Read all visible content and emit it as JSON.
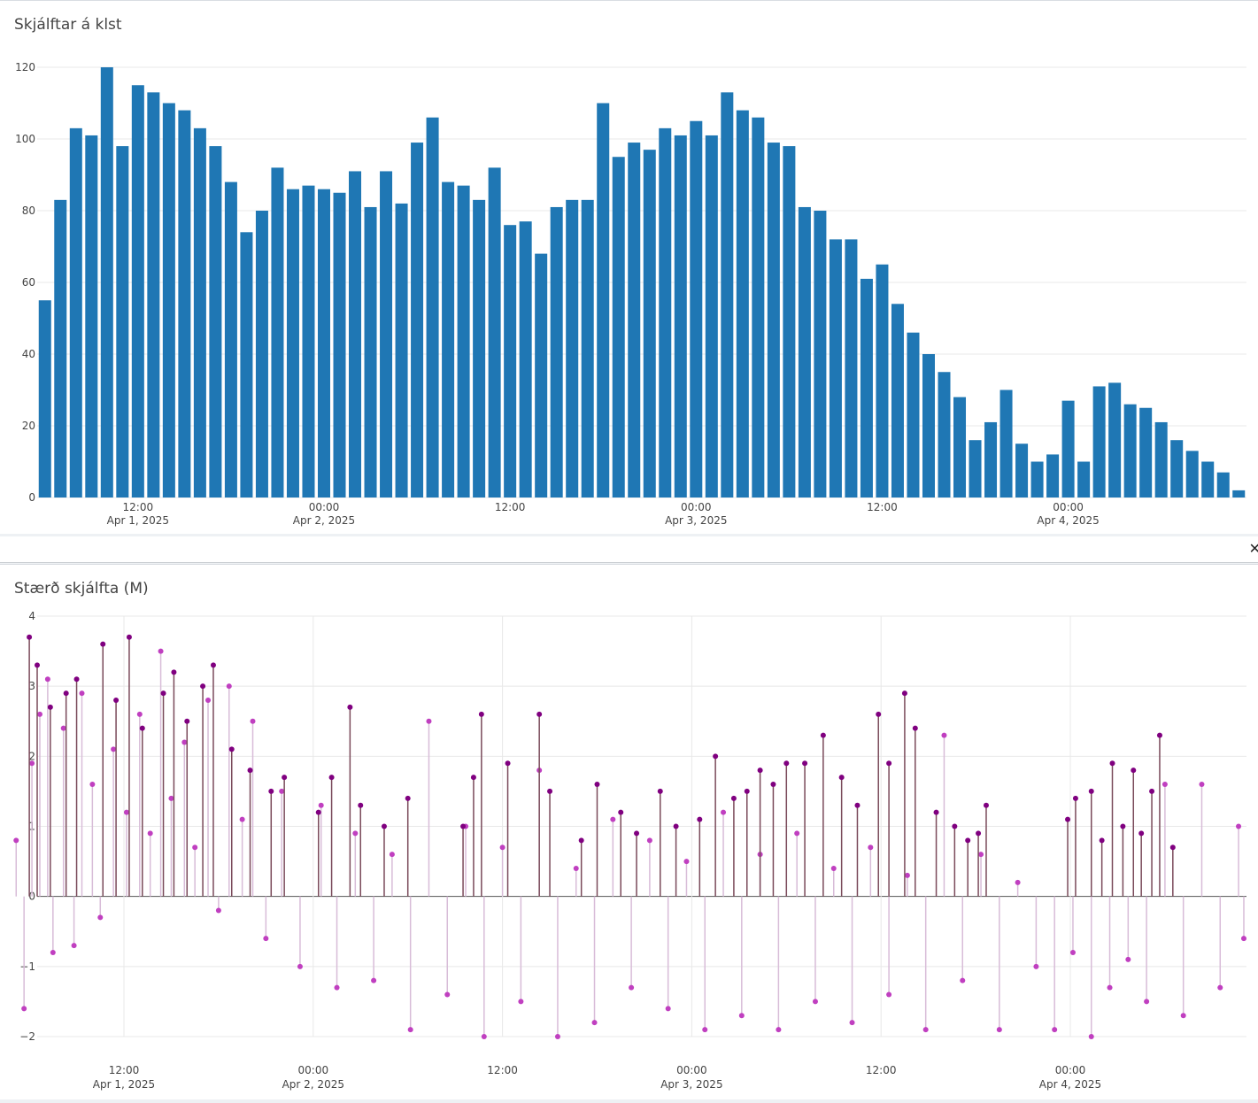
{
  "chart_data": [
    {
      "type": "bar",
      "title": "Skjálftar á klst",
      "xlabel": "",
      "ylabel": "",
      "ylim": [
        0,
        120
      ],
      "yticks": [
        "0",
        "20",
        "40",
        "60",
        "80",
        "100",
        "120"
      ],
      "xticks": [
        {
          "time": "12:00",
          "date": "Apr 1, 2025"
        },
        {
          "time": "00:00",
          "date": "Apr 2, 2025"
        },
        {
          "time": "12:00",
          "date": ""
        },
        {
          "time": "00:00",
          "date": "Apr 3, 2025"
        },
        {
          "time": "12:00",
          "date": ""
        },
        {
          "time": "00:00",
          "date": "Apr 4, 2025"
        }
      ],
      "x_start": "2025-04-01T06:00",
      "x_step_hours": 1,
      "values": [
        55,
        83,
        103,
        101,
        120,
        98,
        115,
        113,
        110,
        108,
        103,
        98,
        88,
        74,
        80,
        92,
        86,
        87,
        86,
        85,
        91,
        81,
        91,
        82,
        99,
        106,
        88,
        87,
        83,
        92,
        76,
        77,
        68,
        81,
        83,
        83,
        110,
        95,
        99,
        97,
        103,
        101,
        105,
        101,
        113,
        108,
        106,
        99,
        98,
        81,
        80,
        72,
        72,
        61,
        65,
        54,
        46,
        40,
        35,
        28,
        16,
        21,
        30,
        15,
        10,
        12,
        27,
        10,
        31,
        32,
        26,
        25,
        21,
        16,
        13,
        10,
        7,
        2
      ],
      "color": "#1f77b4",
      "grid": true
    },
    {
      "type": "scatter",
      "title": "Stærð skjálfta (M)",
      "xlabel": "",
      "ylabel": "",
      "ylim": [
        -2,
        4
      ],
      "yticks": [
        "−2",
        "−1",
        "0",
        "1",
        "2",
        "3",
        "4"
      ],
      "xticks": [
        {
          "time": "12:00",
          "date": "Apr 1, 2025"
        },
        {
          "time": "00:00",
          "date": "Apr 2, 2025"
        },
        {
          "time": "12:00",
          "date": ""
        },
        {
          "time": "00:00",
          "date": "Apr 3, 2025"
        },
        {
          "time": "12:00",
          "date": ""
        },
        {
          "time": "00:00",
          "date": "Apr 4, 2025"
        }
      ],
      "marker": "stem",
      "series": [
        {
          "color": "#c03fc0",
          "stem_color": "#d8bcd8",
          "points": [
            [
              "2025-04-01T05:10",
              0.8
            ],
            [
              "2025-04-01T05:40",
              -1.6
            ],
            [
              "2025-04-01T06:10",
              1.9
            ],
            [
              "2025-04-01T06:40",
              2.6
            ],
            [
              "2025-04-01T07:10",
              3.1
            ],
            [
              "2025-04-01T07:30",
              -0.8
            ],
            [
              "2025-04-01T08:10",
              2.4
            ],
            [
              "2025-04-01T08:50",
              -0.7
            ],
            [
              "2025-04-01T09:20",
              2.9
            ],
            [
              "2025-04-01T10:00",
              1.6
            ],
            [
              "2025-04-01T10:30",
              -0.3
            ],
            [
              "2025-04-01T11:20",
              2.1
            ],
            [
              "2025-04-01T12:10",
              1.2
            ],
            [
              "2025-04-01T13:00",
              2.6
            ],
            [
              "2025-04-01T13:40",
              0.9
            ],
            [
              "2025-04-01T14:20",
              3.5
            ],
            [
              "2025-04-01T15:00",
              1.4
            ],
            [
              "2025-04-01T15:50",
              2.2
            ],
            [
              "2025-04-01T16:30",
              0.7
            ],
            [
              "2025-04-01T17:20",
              2.8
            ],
            [
              "2025-04-01T18:00",
              -0.2
            ],
            [
              "2025-04-01T18:40",
              3.0
            ],
            [
              "2025-04-01T19:30",
              1.1
            ],
            [
              "2025-04-01T20:10",
              2.5
            ],
            [
              "2025-04-01T21:00",
              -0.6
            ],
            [
              "2025-04-01T22:00",
              1.5
            ],
            [
              "2025-04-01T23:10",
              -1.0
            ],
            [
              "2025-04-02T00:30",
              1.3
            ],
            [
              "2025-04-02T01:30",
              -1.3
            ],
            [
              "2025-04-02T02:40",
              0.9
            ],
            [
              "2025-04-02T03:50",
              -1.2
            ],
            [
              "2025-04-02T05:00",
              0.6
            ],
            [
              "2025-04-02T06:10",
              -1.9
            ],
            [
              "2025-04-02T07:20",
              2.5
            ],
            [
              "2025-04-02T08:30",
              -1.4
            ],
            [
              "2025-04-02T09:40",
              1.0
            ],
            [
              "2025-04-02T10:50",
              -2.0
            ],
            [
              "2025-04-02T12:00",
              0.7
            ],
            [
              "2025-04-02T13:10",
              -1.5
            ],
            [
              "2025-04-02T14:20",
              1.8
            ],
            [
              "2025-04-02T15:30",
              -2.0
            ],
            [
              "2025-04-02T16:40",
              0.4
            ],
            [
              "2025-04-02T17:50",
              -1.8
            ],
            [
              "2025-04-02T19:00",
              1.1
            ],
            [
              "2025-04-02T20:10",
              -1.3
            ],
            [
              "2025-04-02T21:20",
              0.8
            ],
            [
              "2025-04-02T22:30",
              -1.6
            ],
            [
              "2025-04-02T23:40",
              0.5
            ],
            [
              "2025-04-03T00:50",
              -1.9
            ],
            [
              "2025-04-03T02:00",
              1.2
            ],
            [
              "2025-04-03T03:10",
              -1.7
            ],
            [
              "2025-04-03T04:20",
              0.6
            ],
            [
              "2025-04-03T05:30",
              -1.9
            ],
            [
              "2025-04-03T06:40",
              0.9
            ],
            [
              "2025-04-03T07:50",
              -1.5
            ],
            [
              "2025-04-03T09:00",
              0.4
            ],
            [
              "2025-04-03T10:10",
              -1.8
            ],
            [
              "2025-04-03T11:20",
              0.7
            ],
            [
              "2025-04-03T12:30",
              -1.4
            ],
            [
              "2025-04-03T13:40",
              0.3
            ],
            [
              "2025-04-03T14:50",
              -1.9
            ],
            [
              "2025-04-03T16:00",
              2.3
            ],
            [
              "2025-04-03T17:10",
              -1.2
            ],
            [
              "2025-04-03T18:20",
              0.6
            ],
            [
              "2025-04-03T19:30",
              -1.9
            ],
            [
              "2025-04-03T20:40",
              0.2
            ],
            [
              "2025-04-03T21:50",
              -1.0
            ],
            [
              "2025-04-03T23:00",
              -1.9
            ],
            [
              "2025-04-04T00:10",
              -0.8
            ],
            [
              "2025-04-04T01:20",
              -2.0
            ],
            [
              "2025-04-04T02:30",
              -1.3
            ],
            [
              "2025-04-04T03:40",
              -0.9
            ],
            [
              "2025-04-04T04:50",
              -1.5
            ],
            [
              "2025-04-04T06:00",
              1.6
            ],
            [
              "2025-04-04T07:10",
              -1.7
            ],
            [
              "2025-04-04T08:20",
              1.6
            ],
            [
              "2025-04-04T09:30",
              -1.3
            ],
            [
              "2025-04-04T10:40",
              1.0
            ],
            [
              "2025-04-04T11:00",
              -0.6
            ]
          ]
        },
        {
          "color": "#800080",
          "stem_color": "#7a4a5a",
          "points": [
            [
              "2025-04-01T06:00",
              3.7
            ],
            [
              "2025-04-01T06:30",
              3.3
            ],
            [
              "2025-04-01T07:20",
              2.7
            ],
            [
              "2025-04-01T08:20",
              2.9
            ],
            [
              "2025-04-01T09:00",
              3.1
            ],
            [
              "2025-04-01T10:40",
              3.6
            ],
            [
              "2025-04-01T11:30",
              2.8
            ],
            [
              "2025-04-01T12:20",
              3.7
            ],
            [
              "2025-04-01T13:10",
              2.4
            ],
            [
              "2025-04-01T14:30",
              2.9
            ],
            [
              "2025-04-01T15:10",
              3.2
            ],
            [
              "2025-04-01T16:00",
              2.5
            ],
            [
              "2025-04-01T17:00",
              3.0
            ],
            [
              "2025-04-01T17:40",
              3.3
            ],
            [
              "2025-04-01T18:50",
              2.1
            ],
            [
              "2025-04-01T20:00",
              1.8
            ],
            [
              "2025-04-01T21:20",
              1.5
            ],
            [
              "2025-04-01T22:10",
              1.7
            ],
            [
              "2025-04-02T00:20",
              1.2
            ],
            [
              "2025-04-02T01:10",
              1.7
            ],
            [
              "2025-04-02T02:20",
              2.7
            ],
            [
              "2025-04-02T03:00",
              1.3
            ],
            [
              "2025-04-02T04:30",
              1.0
            ],
            [
              "2025-04-02T06:00",
              1.4
            ],
            [
              "2025-04-02T09:30",
              1.0
            ],
            [
              "2025-04-02T10:10",
              1.7
            ],
            [
              "2025-04-02T10:40",
              2.6
            ],
            [
              "2025-04-02T12:20",
              1.9
            ],
            [
              "2025-04-02T14:20",
              2.6
            ],
            [
              "2025-04-02T15:00",
              1.5
            ],
            [
              "2025-04-02T17:00",
              0.8
            ],
            [
              "2025-04-02T18:00",
              1.6
            ],
            [
              "2025-04-02T19:30",
              1.2
            ],
            [
              "2025-04-02T20:30",
              0.9
            ],
            [
              "2025-04-02T22:00",
              1.5
            ],
            [
              "2025-04-02T23:00",
              1.0
            ],
            [
              "2025-04-03T00:30",
              1.1
            ],
            [
              "2025-04-03T01:30",
              2.0
            ],
            [
              "2025-04-03T02:40",
              1.4
            ],
            [
              "2025-04-03T03:30",
              1.5
            ],
            [
              "2025-04-03T04:20",
              1.8
            ],
            [
              "2025-04-03T05:10",
              1.6
            ],
            [
              "2025-04-03T06:00",
              1.9
            ],
            [
              "2025-04-03T07:10",
              1.9
            ],
            [
              "2025-04-03T08:20",
              2.3
            ],
            [
              "2025-04-03T09:30",
              1.7
            ],
            [
              "2025-04-03T10:30",
              1.3
            ],
            [
              "2025-04-03T11:50",
              2.6
            ],
            [
              "2025-04-03T12:30",
              1.9
            ],
            [
              "2025-04-03T13:30",
              2.9
            ],
            [
              "2025-04-03T14:10",
              2.4
            ],
            [
              "2025-04-03T15:30",
              1.2
            ],
            [
              "2025-04-03T16:40",
              1.0
            ],
            [
              "2025-04-03T17:30",
              0.8
            ],
            [
              "2025-04-03T18:10",
              0.9
            ],
            [
              "2025-04-03T18:40",
              1.3
            ],
            [
              "2025-04-03T23:50",
              1.1
            ],
            [
              "2025-04-04T00:20",
              1.4
            ],
            [
              "2025-04-04T01:20",
              1.5
            ],
            [
              "2025-04-04T02:00",
              0.8
            ],
            [
              "2025-04-04T02:40",
              1.9
            ],
            [
              "2025-04-04T03:20",
              1.0
            ],
            [
              "2025-04-04T04:00",
              1.8
            ],
            [
              "2025-04-04T04:30",
              0.9
            ],
            [
              "2025-04-04T05:10",
              1.5
            ],
            [
              "2025-04-04T05:40",
              2.3
            ],
            [
              "2025-04-04T06:30",
              0.7
            ]
          ]
        }
      ],
      "grid": true
    }
  ]
}
